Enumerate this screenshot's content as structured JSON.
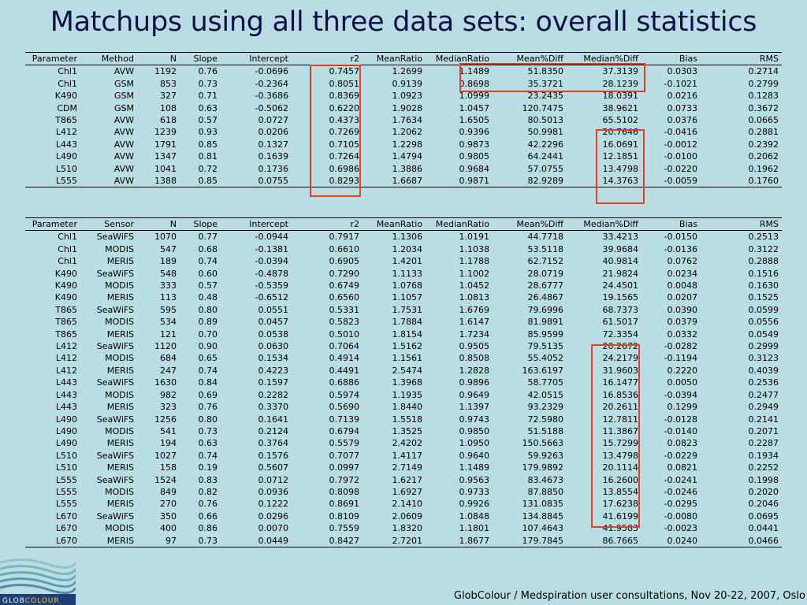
{
  "title": "Matchups using all three data sets: overall statistics",
  "table1": {
    "columns": [
      "Parameter",
      "Method",
      "N",
      "Slope",
      "Intercept",
      "r2",
      "MeanRatio",
      "MedianRatio",
      "Mean%Diff",
      "Median%Diff",
      "Bias",
      "RMS"
    ],
    "rows": [
      [
        "Chl1",
        "AVW",
        "1192",
        "0.76",
        "-0.0696",
        "0.7457",
        "1.2699",
        "1.1489",
        "51.8350",
        "37.3139",
        "0.0303",
        "0.2714"
      ],
      [
        "Chl1",
        "GSM",
        "853",
        "0.73",
        "-0.2364",
        "0.8051",
        "0.9139",
        "0.8698",
        "35.3721",
        "28.1239",
        "-0.1021",
        "0.2799"
      ],
      [
        "K490",
        "GSM",
        "327",
        "0.71",
        "-0.3686",
        "0.8369",
        "1.0923",
        "1.0999",
        "23.2435",
        "18.0391",
        "0.0216",
        "0.1283"
      ],
      [
        "CDM",
        "GSM",
        "108",
        "0.63",
        "-0.5062",
        "0.6220",
        "1.9028",
        "1.0457",
        "120.7475",
        "38.9621",
        "0.0733",
        "0.3672"
      ],
      [
        "T865",
        "AVW",
        "618",
        "0.57",
        "0.0727",
        "0.4373",
        "1.7634",
        "1.6505",
        "80.5013",
        "65.5102",
        "0.0376",
        "0.0665"
      ],
      [
        "L412",
        "AVW",
        "1239",
        "0.93",
        "0.0206",
        "0.7269",
        "1.2062",
        "0.9396",
        "50.9981",
        "20.7646",
        "-0.0416",
        "0.2881"
      ],
      [
        "L443",
        "AVW",
        "1791",
        "0.85",
        "0.1327",
        "0.7105",
        "1.2298",
        "0.9873",
        "42.2296",
        "16.0691",
        "-0.0012",
        "0.2392"
      ],
      [
        "L490",
        "AVW",
        "1347",
        "0.81",
        "0.1639",
        "0.7264",
        "1.4794",
        "0.9805",
        "64.2441",
        "12.1851",
        "-0.0100",
        "0.2062"
      ],
      [
        "L510",
        "AVW",
        "1041",
        "0.72",
        "0.1736",
        "0.6986",
        "1.3886",
        "0.9684",
        "57.0755",
        "13.4798",
        "-0.0220",
        "0.1962"
      ],
      [
        "L555",
        "AVW",
        "1388",
        "0.85",
        "0.0755",
        "0.8293",
        "1.6687",
        "0.9871",
        "82.9289",
        "14.3763",
        "-0.0059",
        "0.1760"
      ]
    ]
  },
  "table2": {
    "columns": [
      "Parameter",
      "Sensor",
      "N",
      "Slope",
      "Intercept",
      "r2",
      "MeanRatio",
      "MedianRatio",
      "Mean%Diff",
      "Median%Diff",
      "Bias",
      "RMS"
    ],
    "rows": [
      [
        "Chl1",
        "SeaWiFS",
        "1070",
        "0.77",
        "-0.0944",
        "0.7917",
        "1.1306",
        "1.0191",
        "44.7718",
        "33.4213",
        "-0.0150",
        "0.2513"
      ],
      [
        "Chl1",
        "MODIS",
        "547",
        "0.68",
        "-0.1381",
        "0.6610",
        "1.2034",
        "1.1038",
        "53.5118",
        "39.9684",
        "-0.0136",
        "0.3122"
      ],
      [
        "Chl1",
        "MERIS",
        "189",
        "0.74",
        "-0.0394",
        "0.6905",
        "1.4201",
        "1.1788",
        "62.7152",
        "40.9814",
        "0.0762",
        "0.2888"
      ],
      [
        "K490",
        "SeaWiFS",
        "548",
        "0.60",
        "-0.4878",
        "0.7290",
        "1.1133",
        "1.1002",
        "28.0719",
        "21.9824",
        "0.0234",
        "0.1516"
      ],
      [
        "K490",
        "MODIS",
        "333",
        "0.57",
        "-0.5359",
        "0.6749",
        "1.0768",
        "1.0452",
        "28.6777",
        "24.4501",
        "0.0048",
        "0.1630"
      ],
      [
        "K490",
        "MERIS",
        "113",
        "0.48",
        "-0.6512",
        "0.6560",
        "1.1057",
        "1.0813",
        "26.4867",
        "19.1565",
        "0.0207",
        "0.1525"
      ],
      [
        "T865",
        "SeaWiFS",
        "595",
        "0.80",
        "0.0551",
        "0.5331",
        "1.7531",
        "1.6769",
        "79.6996",
        "68.7373",
        "0.0390",
        "0.0599"
      ],
      [
        "T865",
        "MODIS",
        "534",
        "0.89",
        "0.0457",
        "0.5823",
        "1.7884",
        "1.6147",
        "81.9891",
        "61.5017",
        "0.0379",
        "0.0556"
      ],
      [
        "T865",
        "MERIS",
        "121",
        "0.70",
        "0.0538",
        "0.5010",
        "1.8154",
        "1.7234",
        "85.9599",
        "72.3354",
        "0.0332",
        "0.0549"
      ],
      [
        "L412",
        "SeaWiFS",
        "1120",
        "0.90",
        "0.0630",
        "0.7064",
        "1.5162",
        "0.9505",
        "79.5135",
        "20.2672",
        "-0.0282",
        "0.2999"
      ],
      [
        "L412",
        "MODIS",
        "684",
        "0.65",
        "0.1534",
        "0.4914",
        "1.1561",
        "0.8508",
        "55.4052",
        "24.2179",
        "-0.1194",
        "0.3123"
      ],
      [
        "L412",
        "MERIS",
        "247",
        "0.74",
        "0.4223",
        "0.4491",
        "2.5474",
        "1.2828",
        "163.6197",
        "31.9603",
        "0.2220",
        "0.4039"
      ],
      [
        "L443",
        "SeaWiFS",
        "1630",
        "0.84",
        "0.1597",
        "0.6886",
        "1.3968",
        "0.9896",
        "58.7705",
        "16.1477",
        "0.0050",
        "0.2536"
      ],
      [
        "L443",
        "MODIS",
        "982",
        "0.69",
        "0.2282",
        "0.5974",
        "1.1935",
        "0.9649",
        "42.0515",
        "16.8536",
        "-0.0394",
        "0.2477"
      ],
      [
        "L443",
        "MERIS",
        "323",
        "0.76",
        "0.3370",
        "0.5690",
        "1.8440",
        "1.1397",
        "93.2329",
        "20.2611",
        "0.1299",
        "0.2949"
      ],
      [
        "L490",
        "SeaWiFS",
        "1256",
        "0.80",
        "0.1641",
        "0.7139",
        "1.5518",
        "0.9743",
        "72.5980",
        "12.7811",
        "-0.0128",
        "0.2141"
      ],
      [
        "L490",
        "MODIS",
        "541",
        "0.73",
        "0.2124",
        "0.6794",
        "1.3525",
        "0.9850",
        "51.5188",
        "11.3867",
        "-0.0140",
        "0.2071"
      ],
      [
        "L490",
        "MERIS",
        "194",
        "0.63",
        "0.3764",
        "0.5579",
        "2.4202",
        "1.0950",
        "150.5663",
        "15.7299",
        "0.0823",
        "0.2287"
      ],
      [
        "L510",
        "SeaWiFS",
        "1027",
        "0.74",
        "0.1576",
        "0.7077",
        "1.4117",
        "0.9640",
        "59.9263",
        "13.4798",
        "-0.0229",
        "0.1934"
      ],
      [
        "L510",
        "MERIS",
        "158",
        "0.19",
        "0.5607",
        "0.0997",
        "2.7149",
        "1.1489",
        "179.9892",
        "20.1114",
        "0.0821",
        "0.2252"
      ],
      [
        "L555",
        "SeaWiFS",
        "1524",
        "0.83",
        "0.0712",
        "0.7972",
        "1.6217",
        "0.9563",
        "83.4673",
        "16.2600",
        "-0.0241",
        "0.1998"
      ],
      [
        "L555",
        "MODIS",
        "849",
        "0.82",
        "0.0936",
        "0.8098",
        "1.6927",
        "0.9733",
        "87.8850",
        "13.8554",
        "-0.0246",
        "0.2020"
      ],
      [
        "L555",
        "MERIS",
        "270",
        "0.76",
        "0.1222",
        "0.8691",
        "2.1410",
        "0.9926",
        "131.0835",
        "17.6238",
        "-0.0295",
        "0.2046"
      ],
      [
        "L670",
        "SeaWiFS",
        "350",
        "0.66",
        "0.0296",
        "0.8109",
        "2.0609",
        "1.0848",
        "134.8845",
        "41.6199",
        "-0.0080",
        "0.0695"
      ],
      [
        "L670",
        "MODIS",
        "400",
        "0.86",
        "0.0070",
        "0.7559",
        "1.8320",
        "1.1801",
        "107.4643",
        "41.9583",
        "-0.0023",
        "0.0441"
      ],
      [
        "L670",
        "MERIS",
        "97",
        "0.73",
        "0.0449",
        "0.8427",
        "2.7201",
        "1.8677",
        "179.7845",
        "86.7665",
        "0.0240",
        "0.0466"
      ]
    ]
  },
  "logo": {
    "text_glob": "GLOB",
    "text_colour": "COLOUR"
  },
  "footer": "GlobColour / Medspiration user consultations, Nov 20-22, 2007, Oslo",
  "colors": {
    "background": "#b9dde2",
    "highlight": "#e2401e",
    "title": "#10104a"
  }
}
